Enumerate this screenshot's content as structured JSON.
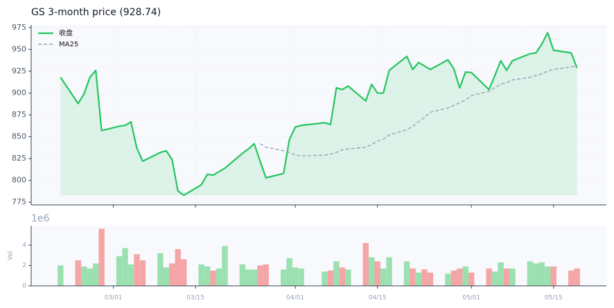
{
  "chart_data": [
    {
      "type": "line",
      "title": "GS  3-month price (928.74)",
      "x": [
        "02/20",
        "02/23",
        "02/24",
        "02/25",
        "02/26",
        "02/27",
        "03/02",
        "03/03",
        "03/04",
        "03/05",
        "03/06",
        "03/09",
        "03/10",
        "03/11",
        "03/12",
        "03/13",
        "03/16",
        "03/17",
        "03/18",
        "03/19",
        "03/20",
        "03/23",
        "03/24",
        "03/25",
        "03/26",
        "03/27",
        "03/30",
        "03/31",
        "04/01",
        "04/02",
        "04/06",
        "04/07",
        "04/08",
        "04/09",
        "04/10",
        "04/13",
        "04/14",
        "04/15",
        "04/16",
        "04/17",
        "04/20",
        "04/21",
        "04/22",
        "04/23",
        "04/24",
        "04/27",
        "04/28",
        "04/29",
        "04/30",
        "05/01",
        "05/04",
        "05/05",
        "05/06",
        "05/07",
        "05/08",
        "05/11",
        "05/12",
        "05/13",
        "05/14",
        "05/15",
        "05/18",
        "05/19"
      ],
      "series": [
        {
          "name": "收盘",
          "color": "#22c55e",
          "values": [
            918,
            888,
            899,
            918,
            926,
            857,
            862,
            863,
            867,
            837,
            822,
            832,
            834,
            824,
            788,
            783,
            795,
            807,
            806,
            810,
            814,
            831,
            836,
            842,
            822,
            803,
            808,
            847,
            861,
            863,
            866,
            864,
            906,
            904,
            908,
            891,
            910,
            900,
            900,
            926,
            942,
            927,
            935,
            931,
            927,
            938,
            928,
            906,
            924,
            923.5,
            904,
            920,
            937,
            926,
            937,
            945,
            946,
            956,
            969,
            949,
            946,
            928.74
          ]
        },
        {
          "name": "MA25",
          "color": "#94a3b8",
          "dashed": true,
          "values": [
            null,
            null,
            null,
            null,
            null,
            null,
            null,
            null,
            null,
            null,
            null,
            null,
            null,
            null,
            null,
            null,
            null,
            null,
            null,
            null,
            null,
            null,
            null,
            null,
            842,
            838,
            834,
            832,
            829,
            828,
            829,
            830,
            832,
            835,
            836,
            838,
            841,
            845,
            847,
            852,
            858,
            862,
            867,
            872,
            878,
            883,
            886,
            889,
            892,
            897,
            902,
            906,
            910,
            912,
            915,
            918,
            920,
            922,
            925,
            927,
            930,
            931
          ]
        }
      ],
      "xlim": [
        "02/15",
        "05/24"
      ],
      "xticks": [
        "03/01",
        "03/15",
        "04/01",
        "04/15",
        "05/01",
        "05/15"
      ],
      "ylim": [
        772,
        978
      ],
      "yticks": [
        775,
        800,
        825,
        850,
        875,
        900,
        925,
        950,
        975
      ],
      "grid": true,
      "legend": "upper left"
    },
    {
      "type": "bar",
      "ylabel": "Vol",
      "offset_label": "1e6",
      "up_color": "#9ae0b0",
      "down_color": "#f4a5a5",
      "x": [
        "02/20",
        "02/23",
        "02/24",
        "02/25",
        "02/26",
        "02/27",
        "03/02",
        "03/03",
        "03/04",
        "03/05",
        "03/06",
        "03/09",
        "03/10",
        "03/11",
        "03/12",
        "03/13",
        "03/16",
        "03/17",
        "03/18",
        "03/19",
        "03/20",
        "03/23",
        "03/24",
        "03/25",
        "03/26",
        "03/27",
        "03/30",
        "03/31",
        "04/01",
        "04/02",
        "04/06",
        "04/07",
        "04/08",
        "04/09",
        "04/10",
        "04/13",
        "04/14",
        "04/15",
        "04/16",
        "04/17",
        "04/20",
        "04/21",
        "04/22",
        "04/23",
        "04/24",
        "04/27",
        "04/28",
        "04/29",
        "04/30",
        "05/01",
        "05/04",
        "05/05",
        "05/06",
        "05/07",
        "05/08",
        "05/11",
        "05/12",
        "05/13",
        "05/14",
        "05/15",
        "05/18",
        "05/19"
      ],
      "values": [
        2.0,
        2.5,
        1.9,
        1.7,
        2.2,
        5.6,
        2.9,
        3.7,
        2.1,
        3.1,
        2.5,
        3.2,
        1.8,
        2.2,
        3.6,
        2.6,
        2.1,
        1.9,
        1.5,
        1.7,
        3.9,
        2.1,
        1.6,
        1.6,
        2.0,
        2.1,
        1.6,
        2.7,
        1.8,
        1.7,
        1.4,
        1.5,
        2.4,
        1.8,
        1.6,
        4.2,
        2.8,
        2.4,
        1.7,
        2.8,
        2.4,
        1.7,
        1.3,
        1.6,
        1.3,
        1.2,
        1.5,
        1.7,
        1.9,
        1.3,
        1.7,
        1.4,
        2.3,
        1.7,
        1.7,
        2.4,
        2.2,
        2.3,
        1.9,
        1.9,
        1.5,
        1.7
      ],
      "xlim": [
        "02/15",
        "05/24"
      ],
      "xticks": [
        "03/01",
        "03/15",
        "04/01",
        "04/15",
        "05/01",
        "05/15"
      ],
      "ylim": [
        0,
        5.9
      ],
      "yticks": [
        0,
        2,
        4
      ]
    }
  ]
}
